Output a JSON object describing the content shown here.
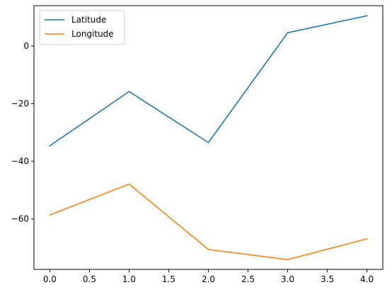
{
  "chart_data": {
    "type": "line",
    "title": "",
    "xlabel": "",
    "ylabel": "",
    "x": [
      0,
      1,
      2,
      3,
      4
    ],
    "xlim": [
      -0.2,
      4.2
    ],
    "ylim": [
      -77.5,
      14.0
    ],
    "xticks": [
      0.0,
      0.5,
      1.0,
      1.5,
      2.0,
      2.5,
      3.0,
      3.5,
      4.0
    ],
    "xtick_labels": [
      "0.0",
      "0.5",
      "1.0",
      "1.5",
      "2.0",
      "2.5",
      "3.0",
      "3.5",
      "4.0"
    ],
    "yticks": [
      -60,
      -40,
      -20,
      0
    ],
    "ytick_labels": [
      "−60",
      "−40",
      "−20",
      "0"
    ],
    "grid": false,
    "legend_position": "upper-left",
    "series": [
      {
        "name": "Latitude",
        "color": "#1f77b4",
        "values": [
          -34.6,
          -15.8,
          -33.5,
          4.6,
          10.5
        ]
      },
      {
        "name": "Longitude",
        "color": "#ff7f0e",
        "values": [
          -58.6,
          -47.9,
          -70.6,
          -74.1,
          -66.9
        ]
      }
    ]
  }
}
